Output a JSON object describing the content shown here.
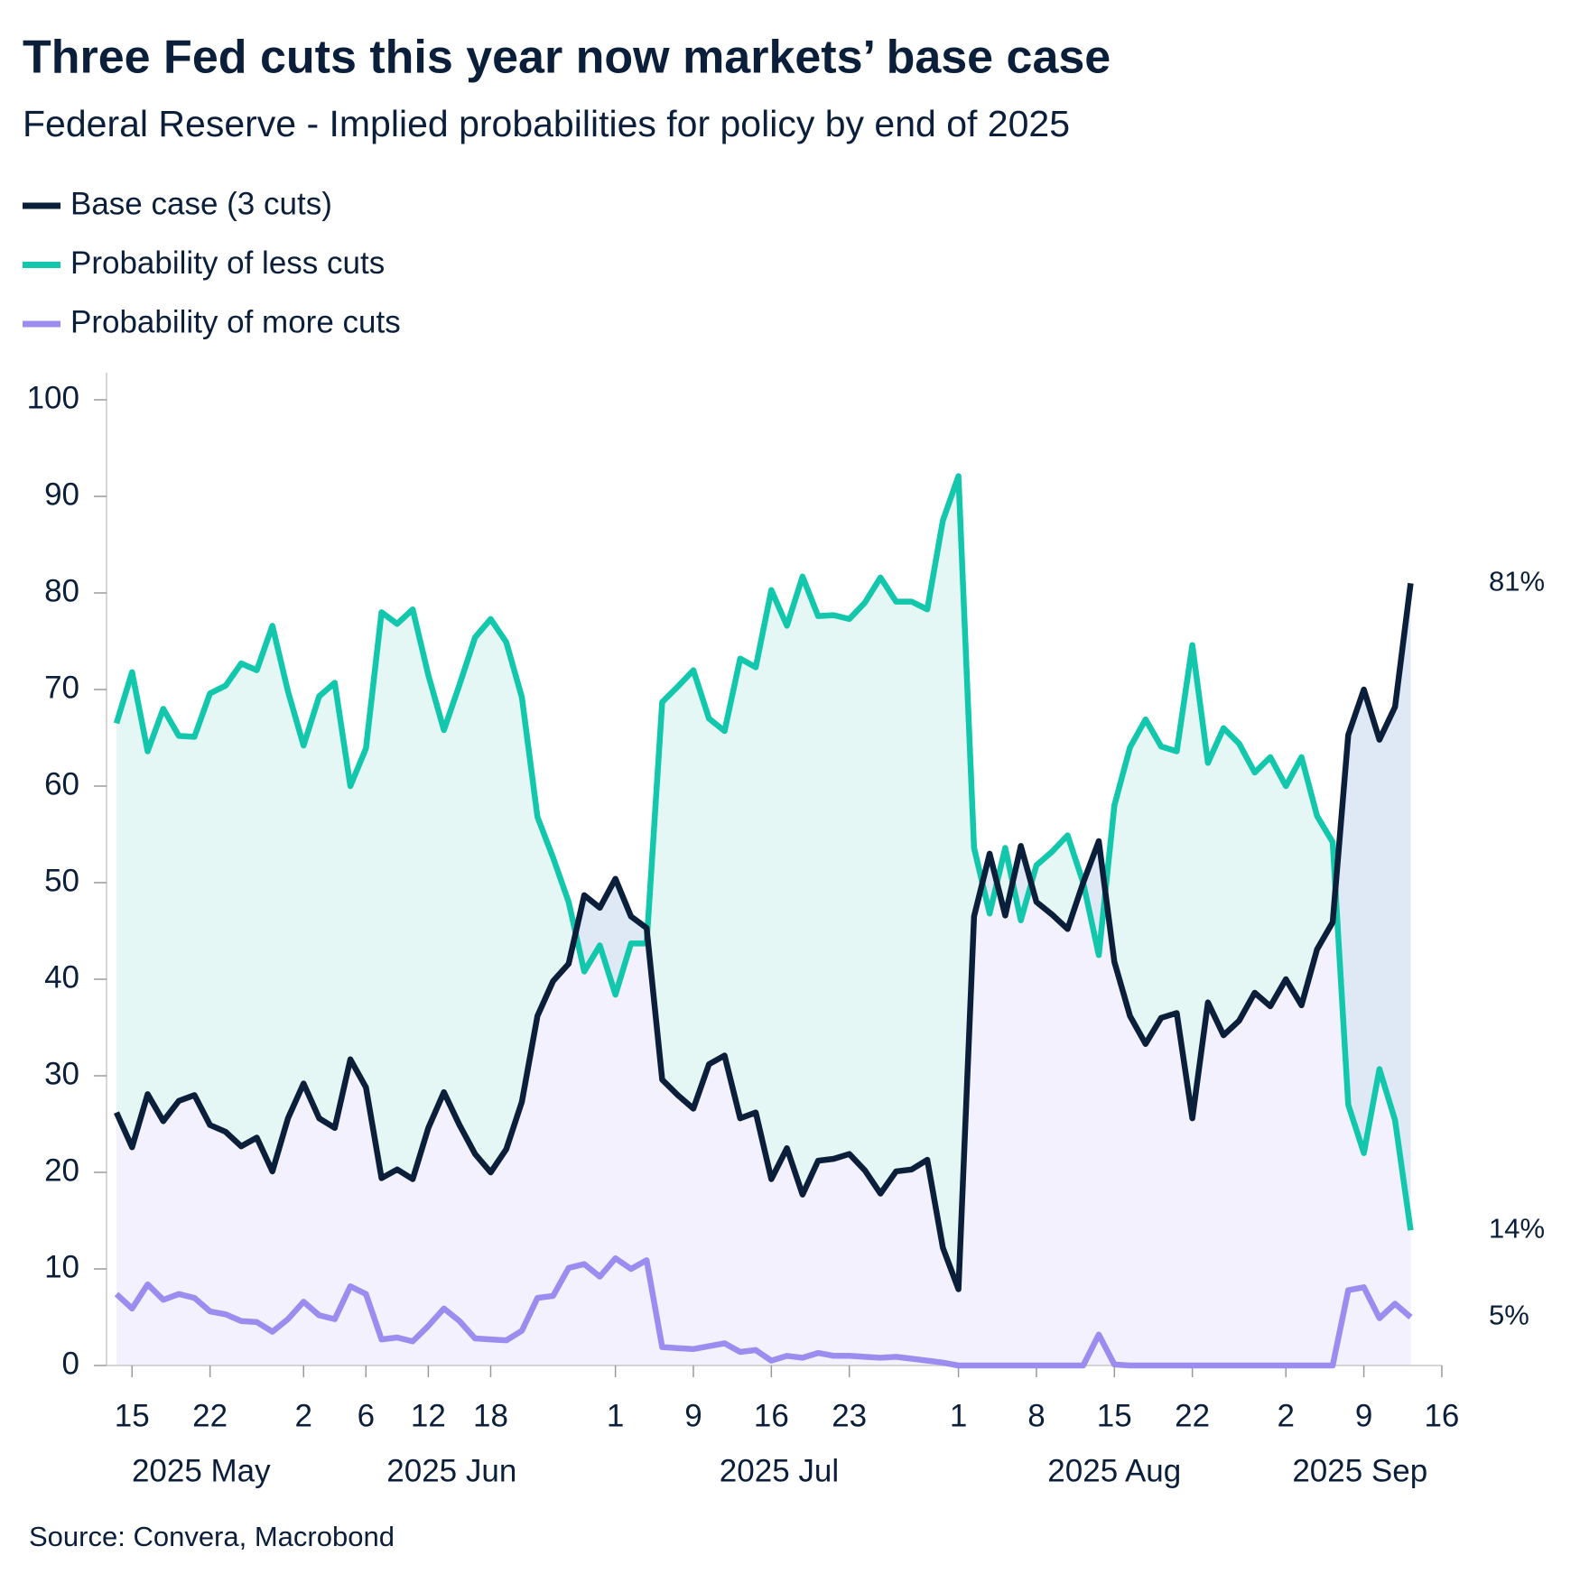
{
  "chart_data": {
    "type": "line",
    "title": "Three Fed cuts this year now markets’ base case",
    "subtitle": "Federal Reserve - Implied probabilities for policy by end of 2025",
    "source": "Source: Convera, Macrobond",
    "legend": "top-left",
    "x": [
      "2025-05-14",
      "2025-05-15",
      "2025-05-16",
      "2025-05-19",
      "2025-05-20",
      "2025-05-21",
      "2025-05-22",
      "2025-05-23",
      "2025-05-27",
      "2025-05-28",
      "2025-05-29",
      "2025-05-30",
      "2025-06-02",
      "2025-06-03",
      "2025-06-04",
      "2025-06-05",
      "2025-06-06",
      "2025-06-09",
      "2025-06-10",
      "2025-06-11",
      "2025-06-12",
      "2025-06-13",
      "2025-06-16",
      "2025-06-17",
      "2025-06-18",
      "2025-06-20",
      "2025-06-23",
      "2025-06-24",
      "2025-06-25",
      "2025-06-26",
      "2025-06-27",
      "2025-06-30",
      "2025-07-01",
      "2025-07-02",
      "2025-07-03",
      "2025-07-07",
      "2025-07-08",
      "2025-07-09",
      "2025-07-10",
      "2025-07-11",
      "2025-07-14",
      "2025-07-15",
      "2025-07-16",
      "2025-07-17",
      "2025-07-18",
      "2025-07-21",
      "2025-07-22",
      "2025-07-23",
      "2025-07-24",
      "2025-07-25",
      "2025-07-28",
      "2025-07-29",
      "2025-07-30",
      "2025-07-31",
      "2025-08-01",
      "2025-08-04",
      "2025-08-05",
      "2025-08-06",
      "2025-08-07",
      "2025-08-08",
      "2025-08-11",
      "2025-08-12",
      "2025-08-13",
      "2025-08-14",
      "2025-08-15",
      "2025-08-18",
      "2025-08-19",
      "2025-08-20",
      "2025-08-21",
      "2025-08-22",
      "2025-08-25",
      "2025-08-26",
      "2025-08-27",
      "2025-08-28",
      "2025-08-29",
      "2025-09-02",
      "2025-09-03",
      "2025-09-04",
      "2025-09-05",
      "2025-09-08",
      "2025-09-09",
      "2025-09-10",
      "2025-09-11",
      "2025-09-12"
    ],
    "series": [
      {
        "name": "Base case (3 cuts)",
        "color": "#0b1f3a",
        "values": [
          26.2,
          22.6,
          28.1,
          25.3,
          27.4,
          28.0,
          24.9,
          24.2,
          22.7,
          23.6,
          20.1,
          25.6,
          29.2,
          25.6,
          24.6,
          31.7,
          28.8,
          19.4,
          20.3,
          19.3,
          24.6,
          28.3,
          24.9,
          21.9,
          20.0,
          22.4,
          27.3,
          36.2,
          39.8,
          41.6,
          48.7,
          47.4,
          50.4,
          46.5,
          45.3,
          29.6,
          28.0,
          26.6,
          31.2,
          32.1,
          25.6,
          26.2,
          19.3,
          22.5,
          17.7,
          21.2,
          21.4,
          21.9,
          20.2,
          17.8,
          20.1,
          20.3,
          21.3,
          12.2,
          7.9,
          46.5,
          53.0,
          46.6,
          53.8,
          48.0,
          46.7,
          45.2,
          50.0,
          54.3,
          41.8,
          36.2,
          33.3,
          36.0,
          36.5,
          25.6,
          37.6,
          34.2,
          35.7,
          38.6,
          37.2,
          40.0,
          37.3,
          43.1,
          45.9,
          65.3,
          70.0,
          64.8,
          68.2,
          81
        ],
        "value_labels": [
          null,
          null,
          null,
          null,
          null,
          null,
          null,
          null,
          null,
          null,
          null,
          null,
          null,
          null,
          null,
          null,
          null,
          null,
          null,
          null,
          null,
          null,
          null,
          null,
          null,
          null,
          null,
          null,
          null,
          null,
          null,
          null,
          null,
          null,
          null,
          null,
          null,
          null,
          null,
          null,
          null,
          null,
          null,
          null,
          null,
          null,
          null,
          null,
          null,
          null,
          null,
          null,
          null,
          null,
          null,
          null,
          null,
          null,
          null,
          null,
          null,
          null,
          null,
          null,
          null,
          null,
          null,
          null,
          null,
          null,
          null,
          null,
          null,
          null,
          null,
          null,
          null,
          null,
          null,
          null,
          null,
          null,
          null,
          "81%"
        ]
      },
      {
        "name": "Probability of less cuts",
        "color": "#12c7ac",
        "values": [
          66.5,
          71.8,
          63.6,
          68.0,
          65.2,
          65.1,
          69.6,
          70.4,
          72.7,
          72.0,
          76.6,
          69.8,
          64.2,
          69.3,
          70.7,
          60.0,
          63.9,
          78.0,
          76.8,
          78.3,
          71.5,
          65.8,
          70.5,
          75.4,
          77.3,
          74.9,
          69.2,
          56.8,
          52.6,
          48.0,
          40.8,
          43.5,
          38.4,
          43.7,
          43.7,
          68.7,
          70.3,
          72.0,
          67.0,
          65.7,
          73.2,
          72.3,
          80.3,
          76.6,
          81.7,
          77.6,
          77.7,
          77.3,
          79.0,
          81.6,
          79.1,
          79.1,
          78.3,
          87.5,
          92.1,
          53.6,
          46.8,
          53.6,
          46.1,
          51.8,
          53.2,
          54.9,
          50.0,
          42.5,
          58.0,
          64.0,
          66.9,
          64.1,
          63.6,
          74.6,
          62.4,
          66.0,
          64.4,
          61.4,
          63.0,
          60.0,
          63.0,
          56.9,
          54.2,
          27.0,
          22.0,
          30.7,
          25.4,
          14
        ],
        "value_labels": [
          null,
          null,
          null,
          null,
          null,
          null,
          null,
          null,
          null,
          null,
          null,
          null,
          null,
          null,
          null,
          null,
          null,
          null,
          null,
          null,
          null,
          null,
          null,
          null,
          null,
          null,
          null,
          null,
          null,
          null,
          null,
          null,
          null,
          null,
          null,
          null,
          null,
          null,
          null,
          null,
          null,
          null,
          null,
          null,
          null,
          null,
          null,
          null,
          null,
          null,
          null,
          null,
          null,
          null,
          null,
          null,
          null,
          null,
          null,
          null,
          null,
          null,
          null,
          null,
          null,
          null,
          null,
          null,
          null,
          null,
          null,
          null,
          null,
          null,
          null,
          null,
          null,
          null,
          null,
          null,
          null,
          null,
          null,
          "14%"
        ]
      },
      {
        "name": "Probability of more cuts",
        "color": "#9b8df0",
        "values": [
          7.4,
          5.9,
          8.4,
          6.8,
          7.4,
          7.0,
          5.6,
          5.3,
          4.6,
          4.5,
          3.5,
          4.8,
          6.6,
          5.2,
          4.8,
          8.2,
          7.4,
          2.7,
          2.9,
          2.5,
          4.1,
          5.9,
          4.6,
          2.8,
          2.7,
          2.6,
          3.6,
          7.0,
          7.2,
          10.1,
          10.5,
          9.2,
          11.1,
          10.0,
          10.9,
          1.9,
          1.8,
          1.7,
          2.0,
          2.3,
          1.4,
          1.6,
          0.5,
          1.0,
          0.8,
          1.3,
          1.0,
          1.0,
          0.9,
          0.8,
          0.9,
          0.7,
          0.5,
          0.3,
          0,
          0,
          0,
          0,
          0,
          0,
          0,
          0,
          0,
          3.2,
          0.1,
          0,
          0,
          0,
          0,
          0,
          0,
          0,
          0,
          0,
          0,
          0,
          0,
          0,
          0,
          7.8,
          8.1,
          4.9,
          6.4,
          5
        ],
        "value_labels": [
          null,
          null,
          null,
          null,
          null,
          null,
          null,
          null,
          null,
          null,
          null,
          null,
          null,
          null,
          null,
          null,
          null,
          null,
          null,
          null,
          null,
          null,
          null,
          null,
          null,
          null,
          null,
          null,
          null,
          null,
          null,
          null,
          null,
          null,
          null,
          null,
          null,
          null,
          null,
          null,
          null,
          null,
          null,
          null,
          null,
          null,
          null,
          null,
          null,
          null,
          null,
          null,
          null,
          null,
          null,
          null,
          null,
          null,
          null,
          null,
          null,
          null,
          null,
          null,
          null,
          null,
          null,
          null,
          null,
          null,
          null,
          null,
          null,
          null,
          null,
          null,
          null,
          null,
          null,
          null,
          null,
          null,
          null,
          "5%"
        ]
      }
    ],
    "ylim": [
      0,
      100
    ],
    "yticks": [
      0,
      10,
      20,
      30,
      40,
      50,
      60,
      70,
      80,
      90,
      100
    ],
    "xticks": [
      {
        "value": "2025-05-15",
        "label": "15"
      },
      {
        "value": "2025-05-22",
        "label": "22"
      },
      {
        "value": "2025-06-02",
        "label": "2"
      },
      {
        "value": "2025-06-06",
        "label": "6"
      },
      {
        "value": "2025-06-12",
        "label": "12"
      },
      {
        "value": "2025-06-18",
        "label": "18"
      },
      {
        "value": "2025-07-01",
        "label": "1"
      },
      {
        "value": "2025-07-09",
        "label": "9"
      },
      {
        "value": "2025-07-16",
        "label": "16"
      },
      {
        "value": "2025-07-23",
        "label": "23"
      },
      {
        "value": "2025-08-01",
        "label": "1"
      },
      {
        "value": "2025-08-08",
        "label": "8"
      },
      {
        "value": "2025-08-15",
        "label": "15"
      },
      {
        "value": "2025-08-22",
        "label": "22"
      },
      {
        "value": "2025-09-02",
        "label": "2"
      },
      {
        "value": "2025-09-09",
        "label": "9"
      },
      {
        "value": "2025-09-16",
        "label": "16"
      }
    ],
    "months": [
      "2025 May",
      "2025 Jun",
      "2025 Jul",
      "2025 Aug",
      "2025 Sep"
    ]
  }
}
